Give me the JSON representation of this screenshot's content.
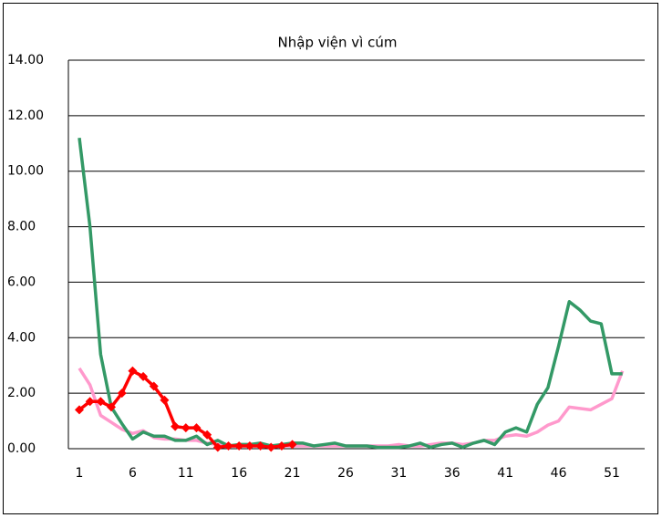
{
  "chart_data": {
    "type": "line",
    "title": "Nhập viện vì cúm",
    "categories": [
      "1",
      null,
      null,
      null,
      null,
      "6",
      null,
      null,
      null,
      null,
      "11",
      null,
      null,
      null,
      null,
      "16",
      null,
      null,
      null,
      null,
      "21",
      null,
      null,
      null,
      null,
      "26",
      null,
      null,
      null,
      null,
      "31",
      null,
      null,
      null,
      null,
      "36",
      null,
      null,
      null,
      null,
      "41",
      null,
      null,
      null,
      null,
      "46",
      null,
      null,
      null,
      null,
      "51",
      null
    ],
    "ylim": [
      0,
      14
    ],
    "yticks": [
      {
        "value": 0,
        "label": "0.00"
      },
      {
        "value": 2,
        "label": "2.00"
      },
      {
        "value": 4,
        "label": "4.00"
      },
      {
        "value": 6,
        "label": "6.00"
      },
      {
        "value": 8,
        "label": "8.00"
      },
      {
        "value": 10,
        "label": "10.00"
      },
      {
        "value": 12,
        "label": "12.00"
      },
      {
        "value": 14,
        "label": "14.00"
      }
    ],
    "grid": true,
    "series": [
      {
        "color": "#ff99cc",
        "marker": "none",
        "values": [
          2.9,
          2.3,
          1.2,
          0.95,
          0.7,
          0.55,
          0.65,
          0.4,
          0.35,
          0.35,
          0.3,
          0.3,
          0.2,
          0.15,
          0.1,
          0.1,
          0.15,
          0.1,
          0.1,
          0.1,
          0.1,
          0.1,
          0.1,
          0.1,
          0.1,
          0.1,
          0.1,
          0.1,
          0.1,
          0.1,
          0.15,
          0.1,
          0.1,
          0.15,
          0.2,
          0.2,
          0.15,
          0.2,
          0.3,
          0.3,
          0.45,
          0.5,
          0.45,
          0.6,
          0.85,
          1.0,
          1.5,
          1.45,
          1.4,
          1.6,
          1.8,
          2.8
        ]
      },
      {
        "color": "#339966",
        "marker": "none",
        "values": [
          11.2,
          8.0,
          3.4,
          1.5,
          0.9,
          0.35,
          0.6,
          0.45,
          0.45,
          0.3,
          0.3,
          0.45,
          0.15,
          0.3,
          0.1,
          0.15,
          0.15,
          0.2,
          0.1,
          0.15,
          0.2,
          0.2,
          0.1,
          0.15,
          0.2,
          0.1,
          0.1,
          0.1,
          0.05,
          0.05,
          0.05,
          0.1,
          0.2,
          0.05,
          0.15,
          0.2,
          0.05,
          0.2,
          0.3,
          0.15,
          0.6,
          0.75,
          0.6,
          1.6,
          2.2,
          3.7,
          5.3,
          5.0,
          4.6,
          4.5,
          2.7,
          2.7
        ]
      },
      {
        "color": "#ff0000",
        "marker": "diamond",
        "values": [
          1.4,
          1.7,
          1.7,
          1.5,
          2.0,
          2.8,
          2.6,
          2.25,
          1.75,
          0.8,
          0.75,
          0.75,
          0.5,
          0.05,
          0.1,
          0.1,
          0.1,
          0.1,
          0.05,
          0.1,
          0.15,
          null,
          null,
          null,
          null,
          null,
          null,
          null,
          null,
          null,
          null,
          null,
          null,
          null,
          null,
          null,
          null,
          null,
          null,
          null,
          null,
          null,
          null,
          null,
          null,
          null,
          null,
          null,
          null,
          null,
          null,
          null
        ]
      }
    ]
  }
}
